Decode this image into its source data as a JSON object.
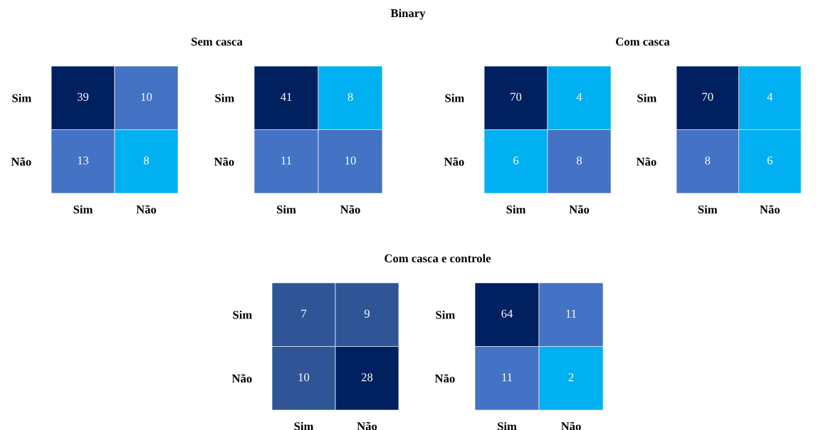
{
  "chart_data": [
    {
      "type": "heatmap",
      "annotations": [
        "Binary",
        "Sem casca"
      ],
      "categories": [
        "Sim",
        "Não"
      ],
      "y_categories": [
        "Sim",
        "Não"
      ],
      "cells": [
        [
          39,
          10
        ],
        [
          13,
          8
        ]
      ],
      "colors": [
        [
          "#002060",
          "#4472c4"
        ],
        [
          "#4472c4",
          "#00b0f0"
        ]
      ],
      "data_labels": true
    },
    {
      "type": "heatmap",
      "categories": [
        "Sim",
        "Não"
      ],
      "y_categories": [
        "Sim",
        "Não"
      ],
      "cells": [
        [
          41,
          8
        ],
        [
          11,
          10
        ]
      ],
      "colors": [
        [
          "#002060",
          "#00b0f0"
        ],
        [
          "#4472c4",
          "#4472c4"
        ]
      ],
      "data_labels": true
    },
    {
      "type": "heatmap",
      "annotations": [
        "Com casca"
      ],
      "categories": [
        "Sim",
        "Não"
      ],
      "y_categories": [
        "Sim",
        "Não"
      ],
      "cells": [
        [
          70,
          4
        ],
        [
          6,
          8
        ]
      ],
      "colors": [
        [
          "#002060",
          "#00b0f0"
        ],
        [
          "#00b0f0",
          "#4472c4"
        ]
      ],
      "data_labels": true
    },
    {
      "type": "heatmap",
      "categories": [
        "Sim",
        "Não"
      ],
      "y_categories": [
        "Sim",
        "Não"
      ],
      "cells": [
        [
          70,
          4
        ],
        [
          8,
          6
        ]
      ],
      "colors": [
        [
          "#002060",
          "#00b0f0"
        ],
        [
          "#4472c4",
          "#00b0f0"
        ]
      ],
      "data_labels": true
    },
    {
      "type": "heatmap",
      "annotations": [
        "Com casca e controle"
      ],
      "categories": [
        "Sim",
        "Não"
      ],
      "y_categories": [
        "Sim",
        "Não"
      ],
      "cells": [
        [
          7,
          9
        ],
        [
          10,
          28
        ]
      ],
      "colors": [
        [
          "#2f5597",
          "#2f5597"
        ],
        [
          "#2f5597",
          "#002060"
        ]
      ],
      "data_labels": true
    },
    {
      "type": "heatmap",
      "categories": [
        "Sim",
        "Não"
      ],
      "y_categories": [
        "Sim",
        "Não"
      ],
      "cells": [
        [
          64,
          11
        ],
        [
          11,
          2
        ]
      ],
      "colors": [
        [
          "#002060",
          "#4472c4"
        ],
        [
          "#4472c4",
          "#00b0f0"
        ]
      ],
      "data_labels": true
    }
  ]
}
